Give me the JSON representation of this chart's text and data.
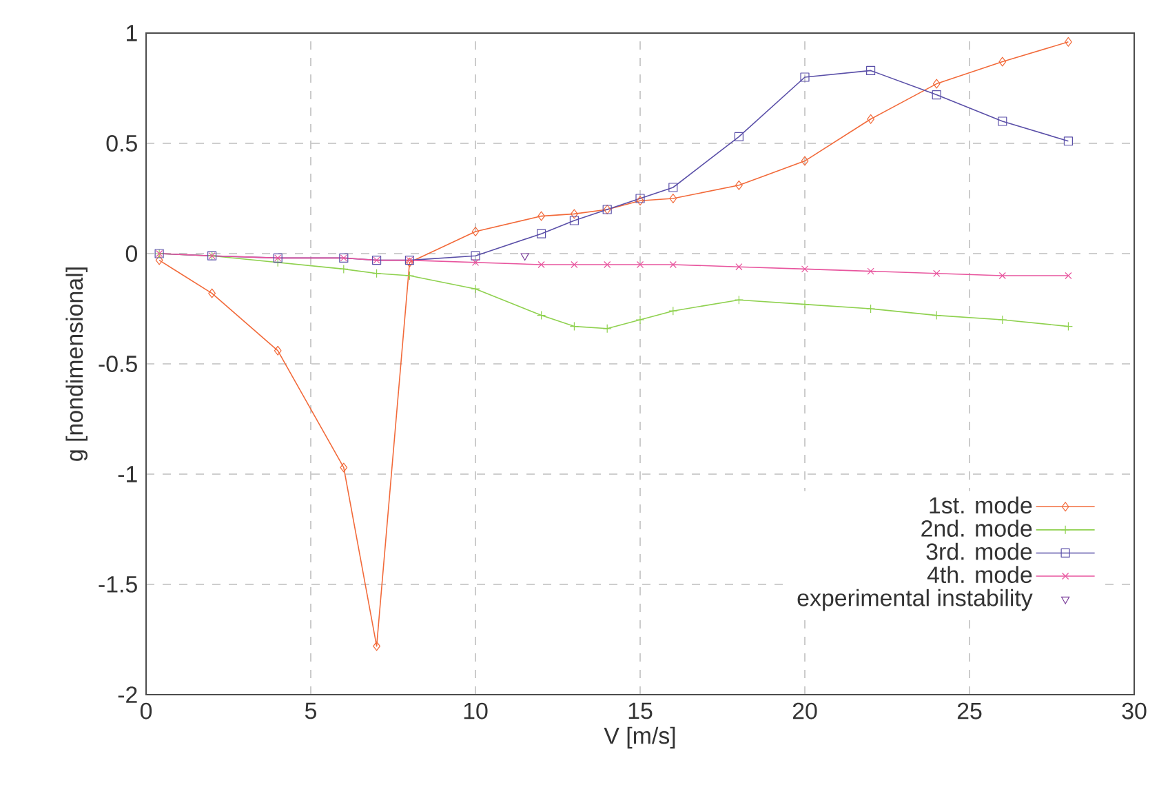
{
  "chart_data": {
    "type": "line",
    "xlabel": "V [m/s]",
    "ylabel": "g [nondimensional]",
    "xlim": [
      0,
      30
    ],
    "ylim": [
      -2,
      1
    ],
    "xticks": [
      0,
      5,
      10,
      15,
      20,
      25,
      30
    ],
    "yticks": [
      -2,
      -1.5,
      -1,
      -0.5,
      0,
      0.5,
      1
    ],
    "grid": true,
    "legend": "bottom right",
    "line_style": "solid",
    "series": [
      {
        "name": "1st. mode",
        "color": "#f26a3a",
        "marker": "diamond",
        "x": [
          0.4,
          2,
          4,
          6,
          7,
          8,
          10,
          12,
          13,
          14,
          15,
          16,
          18,
          20,
          22,
          24,
          26,
          28
        ],
        "values": [
          -0.03,
          -0.18,
          -0.44,
          -0.97,
          -1.78,
          -0.04,
          0.1,
          0.17,
          0.18,
          0.2,
          0.24,
          0.25,
          0.31,
          0.42,
          0.61,
          0.77,
          0.87,
          0.96
        ]
      },
      {
        "name": "2nd. mode",
        "color": "#8fd14f",
        "marker": "cross",
        "x": [
          0.4,
          2,
          4,
          6,
          7,
          8,
          10,
          12,
          13,
          14,
          15,
          16,
          18,
          20,
          22,
          24,
          26,
          28
        ],
        "values": [
          0,
          -0.01,
          -0.04,
          -0.07,
          -0.09,
          -0.1,
          -0.16,
          -0.28,
          -0.33,
          -0.34,
          -0.3,
          -0.26,
          -0.21,
          -0.23,
          -0.25,
          -0.28,
          -0.3,
          -0.33
        ]
      },
      {
        "name": "3rd. mode",
        "color": "#5a4fa8",
        "marker": "square",
        "x": [
          0.4,
          2,
          4,
          6,
          7,
          8,
          10,
          12,
          13,
          14,
          15,
          16,
          18,
          20,
          22,
          24,
          26,
          28
        ],
        "values": [
          0,
          -0.01,
          -0.02,
          -0.02,
          -0.03,
          -0.03,
          -0.01,
          0.09,
          0.15,
          0.2,
          0.25,
          0.3,
          0.53,
          0.8,
          0.83,
          0.72,
          0.6,
          0.51
        ]
      },
      {
        "name": "4th. mode",
        "color": "#e8559e",
        "marker": "x",
        "x": [
          0.4,
          2,
          4,
          6,
          7,
          8,
          10,
          12,
          13,
          14,
          15,
          16,
          18,
          20,
          22,
          24,
          26,
          28
        ],
        "values": [
          0,
          -0.01,
          -0.02,
          -0.02,
          -0.03,
          -0.03,
          -0.04,
          -0.05,
          -0.05,
          -0.05,
          -0.05,
          -0.05,
          -0.06,
          -0.07,
          -0.08,
          -0.09,
          -0.1,
          -0.1
        ]
      },
      {
        "name": "experimental instability",
        "type": "scatter",
        "color": "#7a3d9a",
        "marker": "triangle",
        "x": [
          11.5
        ],
        "values": [
          -0.01
        ]
      }
    ]
  }
}
